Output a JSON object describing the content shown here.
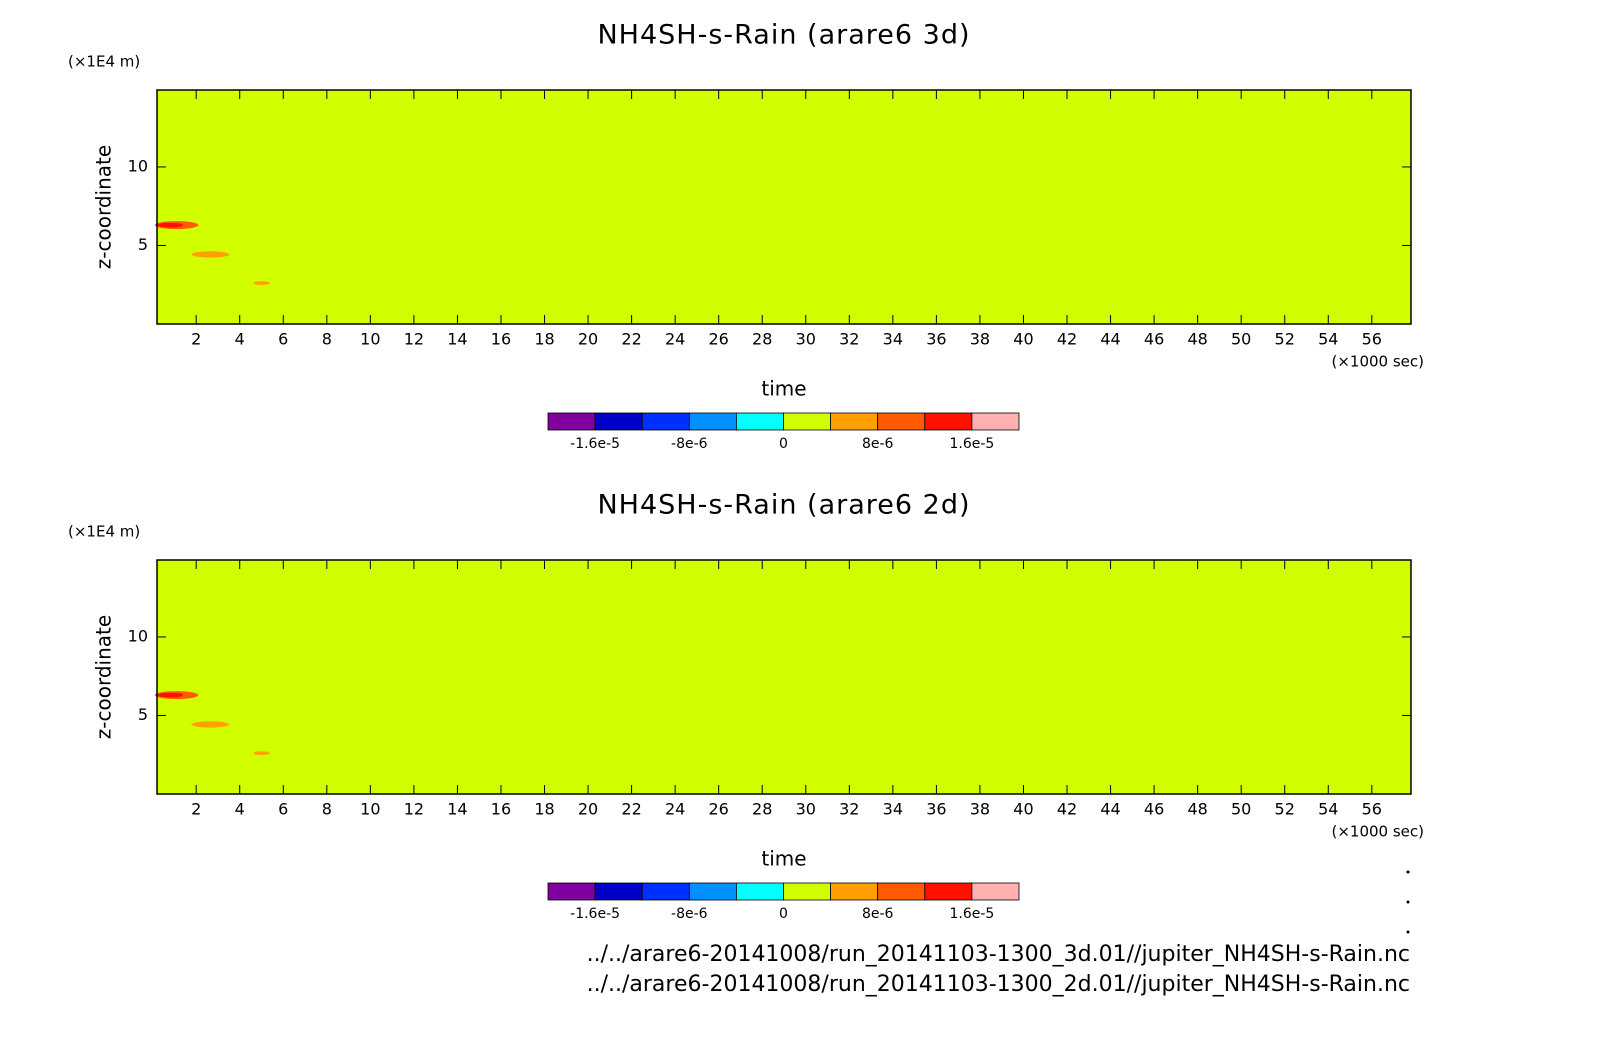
{
  "chart_data": [
    {
      "type": "contour",
      "title": "NH4SH-s-Rain (arare6 3d)",
      "x_label": "time",
      "x_unit": "(×1000 sec)",
      "y_label": "z-coordinate",
      "y_unit": "(×1E4 m)",
      "xlim": [
        0.2,
        57.8
      ],
      "xticks": [
        2,
        4,
        6,
        8,
        10,
        12,
        14,
        16,
        18,
        20,
        22,
        24,
        26,
        28,
        30,
        32,
        34,
        36,
        38,
        40,
        42,
        44,
        46,
        48,
        50,
        52,
        54,
        56
      ],
      "ylim": [
        0,
        14.9
      ],
      "yticks": [
        5,
        10
      ],
      "background_value": 0,
      "blobs": [
        {
          "x": 1.1,
          "y": 6.3,
          "dx": 2.0,
          "dy": 0.5,
          "value": 9e-06
        },
        {
          "x": 0.8,
          "y": 6.3,
          "dx": 1.2,
          "dy": 0.3,
          "value": 1.3e-05
        },
        {
          "x": 2.65,
          "y": 4.43,
          "dx": 1.75,
          "dy": 0.4,
          "value": 5e-06
        },
        {
          "x": 5.0,
          "y": 2.6,
          "dx": 0.75,
          "dy": 0.25,
          "value": 5e-06
        }
      ],
      "colorbar": {
        "levels": [
          -2e-05,
          -1.6e-05,
          -1.2e-05,
          -8e-06,
          -4e-06,
          0,
          4e-06,
          8e-06,
          1.2e-05,
          1.6e-05,
          2e-05
        ],
        "colors": [
          "#8000a0",
          "#0000c8",
          "#0030ff",
          "#0090ff",
          "#00ffff",
          "#d2ff00",
          "#ffa000",
          "#ff5a00",
          "#ff1000",
          "#ffb0b0"
        ],
        "ticks": [
          {
            "value": -1.6e-05,
            "label": "-1.6e-5"
          },
          {
            "value": -8e-06,
            "label": "-8e-6"
          },
          0,
          {
            "value": 8e-06,
            "label": "8e-6"
          },
          {
            "value": 1.6e-05,
            "label": "1.6e-5"
          }
        ]
      }
    },
    {
      "type": "contour",
      "title": "NH4SH-s-Rain (arare6 2d)",
      "x_label": "time",
      "x_unit": "(×1000 sec)",
      "y_label": "z-coordinate",
      "y_unit": "(×1E4 m)",
      "xlim": [
        0.2,
        57.8
      ],
      "xticks": [
        2,
        4,
        6,
        8,
        10,
        12,
        14,
        16,
        18,
        20,
        22,
        24,
        26,
        28,
        30,
        32,
        34,
        36,
        38,
        40,
        42,
        44,
        46,
        48,
        50,
        52,
        54,
        56
      ],
      "ylim": [
        0,
        14.9
      ],
      "yticks": [
        5,
        10
      ],
      "background_value": 0,
      "blobs": [
        {
          "x": 1.1,
          "y": 6.3,
          "dx": 2.0,
          "dy": 0.5,
          "value": 9e-06
        },
        {
          "x": 0.8,
          "y": 6.3,
          "dx": 1.2,
          "dy": 0.3,
          "value": 1.3e-05
        },
        {
          "x": 2.65,
          "y": 4.43,
          "dx": 1.75,
          "dy": 0.4,
          "value": 5e-06
        },
        {
          "x": 5.0,
          "y": 2.6,
          "dx": 0.75,
          "dy": 0.25,
          "value": 5e-06
        }
      ],
      "colorbar": {
        "levels": [
          -2e-05,
          -1.6e-05,
          -1.2e-05,
          -8e-06,
          -4e-06,
          0,
          4e-06,
          8e-06,
          1.2e-05,
          1.6e-05,
          2e-05
        ],
        "colors": [
          "#8000a0",
          "#0000c8",
          "#0030ff",
          "#0090ff",
          "#00ffff",
          "#d2ff00",
          "#ffa000",
          "#ff5a00",
          "#ff1000",
          "#ffb0b0"
        ],
        "ticks": [
          {
            "value": -1.6e-05,
            "label": "-1.6e-5"
          },
          {
            "value": -8e-06,
            "label": "-8e-6"
          },
          0,
          {
            "value": 8e-06,
            "label": "8e-6"
          },
          {
            "value": 1.6e-05,
            "label": "1.6e-5"
          }
        ]
      }
    }
  ],
  "footer": [
    "../../arare6-20141008/run_20141103-1300_3d.01//jupiter_NH4SH-s-Rain.nc",
    "../../arare6-20141008/run_20141103-1300_2d.01//jupiter_NH4SH-s-Rain.nc"
  ]
}
